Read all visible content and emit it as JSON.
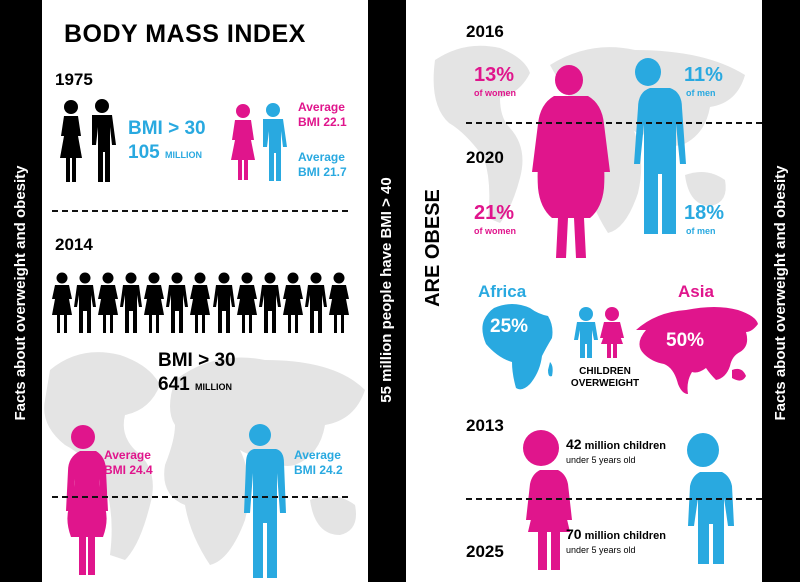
{
  "side_left": "Facts about overweight and obesity",
  "side_right": "Facts about overweight and obesity",
  "side_middle": "55 million people have BMI > 40",
  "are_obese": "ARE OBESE",
  "left": {
    "title": "BODY MASS INDEX",
    "y1975": {
      "year": "1975",
      "bmi": "BMI > 30",
      "count": "105",
      "unit": "MILLION",
      "avg_women_label": "Average",
      "avg_women_value": "BMI 22.1",
      "avg_men_label": "Average",
      "avg_men_value": "BMI 21.7"
    },
    "y2014": {
      "year": "2014",
      "bmi": "BMI > 30",
      "count": "641",
      "unit": "MILLION",
      "avg_women_label": "Average",
      "avg_women_value": "BMI 24.4",
      "avg_men_label": "Average",
      "avg_men_value": "BMI 24.2",
      "crowd_count": 13
    }
  },
  "right": {
    "y2016": {
      "year": "2016",
      "women_pct": "13%",
      "women_label": "of women",
      "men_pct": "11%",
      "men_label": "of men"
    },
    "y2020": {
      "year": "2020",
      "women_pct": "21%",
      "women_label": "of women",
      "men_pct": "18%",
      "men_label": "of men"
    },
    "africa": {
      "name": "Africa",
      "pct": "25%"
    },
    "asia": {
      "name": "Asia",
      "pct": "50%"
    },
    "children_label_1": "CHILDREN",
    "children_label_2": "OVERWEIGHT",
    "y2013": {
      "year": "2013",
      "count": "42",
      "unit": "million children",
      "sub": "under 5 years old"
    },
    "y2025": {
      "year": "2025",
      "count": "70",
      "unit": "million children",
      "sub": "under 5 years old"
    }
  },
  "colors": {
    "magenta": "#e0158c",
    "cyan": "#29a9e0",
    "black": "#000000",
    "map": "#e4e4e4"
  }
}
